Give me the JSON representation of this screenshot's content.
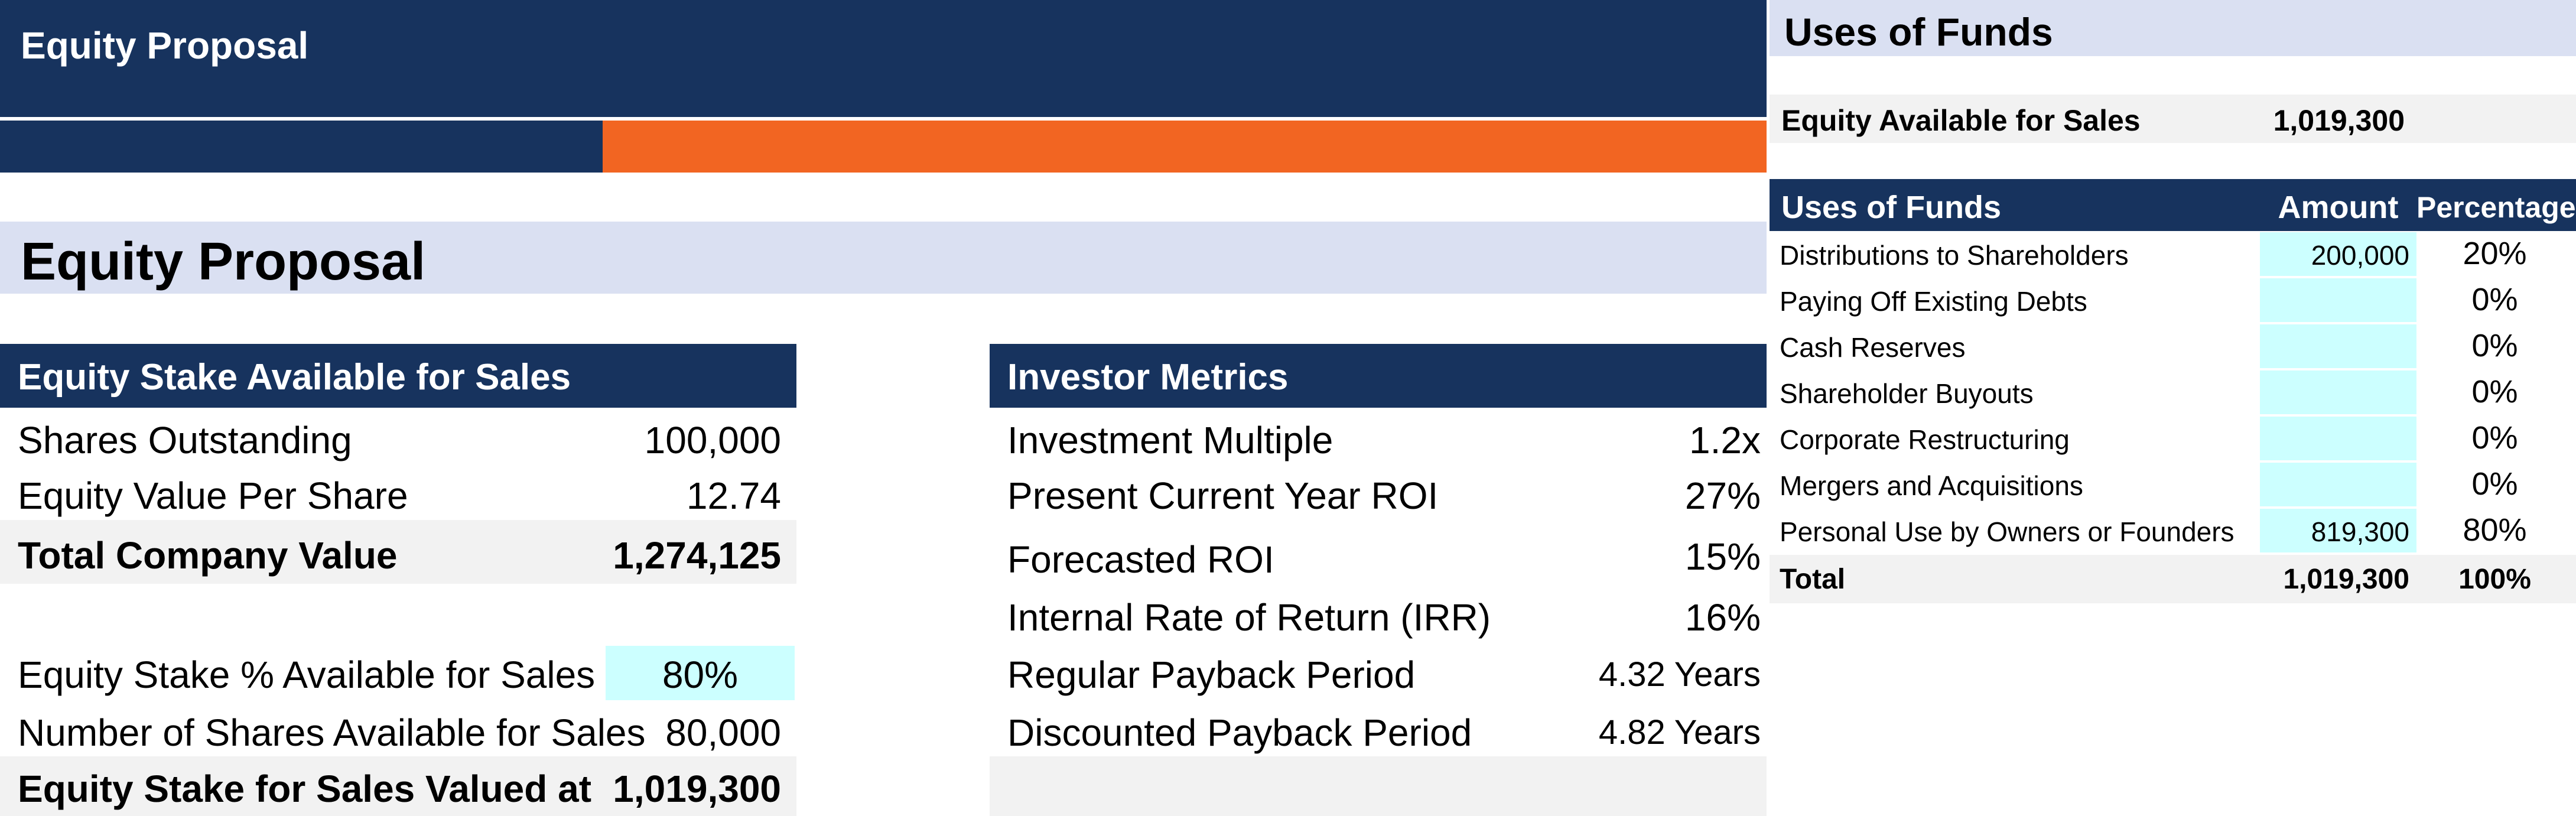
{
  "banner": {
    "title": "Equity Proposal"
  },
  "section_title": "Equity Proposal",
  "equity_stake": {
    "header": "Equity Stake Available for Sales",
    "rows": [
      {
        "label": "Shares Outstanding",
        "value": "100,000"
      },
      {
        "label": "Equity Value Per Share",
        "value": "12.74"
      },
      {
        "label": "Total Company Value",
        "value": "1,274,125"
      },
      {
        "label": "Equity Stake % Available for Sales",
        "value": "80%"
      },
      {
        "label": "Number of Shares Available for Sales",
        "value": "80,000"
      },
      {
        "label": "Equity Stake for Sales Valued at",
        "value": "1,019,300"
      }
    ]
  },
  "investor_metrics": {
    "header": "Investor Metrics",
    "rows": [
      {
        "label": "Investment Multiple",
        "value": "1.2x"
      },
      {
        "label": "Present Current Year ROI",
        "value": "27%"
      },
      {
        "label": "Forecasted ROI",
        "value": "15%"
      },
      {
        "label": "Internal Rate of Return (IRR)",
        "value": "16%"
      },
      {
        "label": "Regular Payback Period",
        "value": "4.32 Years"
      },
      {
        "label": "Discounted Payback Period",
        "value": "4.82 Years"
      }
    ]
  },
  "uses_of_funds": {
    "title": "Uses of Funds",
    "available_label": "Equity Available for Sales",
    "available_value": "1,019,300",
    "table_headers": [
      "Uses of Funds",
      "Amount",
      "Percentage"
    ],
    "rows": [
      {
        "label": "Distributions to Shareholders",
        "amount": "200,000",
        "pct": "20%"
      },
      {
        "label": "Paying Off Existing Debts",
        "amount": "",
        "pct": "0%"
      },
      {
        "label": "Cash Reserves",
        "amount": "",
        "pct": "0%"
      },
      {
        "label": "Shareholder Buyouts",
        "amount": "",
        "pct": "0%"
      },
      {
        "label": "Corporate Restructuring",
        "amount": "",
        "pct": "0%"
      },
      {
        "label": "Mergers and Acquisitions",
        "amount": "",
        "pct": "0%"
      },
      {
        "label": "Personal Use by Owners or Founders",
        "amount": "819,300",
        "pct": "80%"
      }
    ],
    "total": {
      "label": "Total",
      "amount": "1,019,300",
      "pct": "100%"
    }
  },
  "colors": {
    "navy": "#17335e",
    "orange": "#f26522",
    "lavender": "#dae0f2",
    "cyan_input": "#ccffff",
    "grey_band": "#f2f2f2"
  }
}
